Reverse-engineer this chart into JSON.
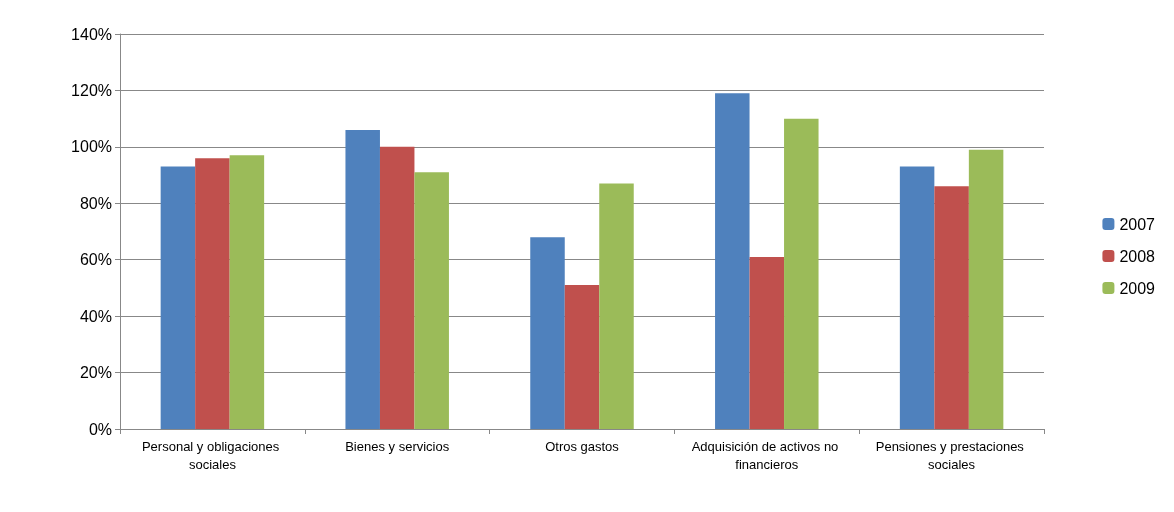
{
  "chart_data": {
    "type": "bar",
    "categories": [
      "Personal y obligaciones sociales",
      "Bienes y servicios",
      "Otros gastos",
      "Adquisición de activos no financieros",
      "Pensiones y prestaciones sociales"
    ],
    "series": [
      {
        "name": "2007",
        "color": "#4f81bd",
        "values": [
          93,
          106,
          68,
          119,
          93
        ]
      },
      {
        "name": "2008",
        "color": "#c0504d",
        "values": [
          96,
          100,
          51,
          61,
          86
        ]
      },
      {
        "name": "2009",
        "color": "#9bbb59",
        "values": [
          97,
          91,
          87,
          110,
          99
        ]
      }
    ],
    "ylim": [
      0,
      140
    ],
    "yticks": [
      {
        "value": 0,
        "label": "0%"
      },
      {
        "value": 20,
        "label": "20%"
      },
      {
        "value": 40,
        "label": "40%"
      },
      {
        "value": 60,
        "label": "60%"
      },
      {
        "value": 80,
        "label": "80%"
      },
      {
        "value": 100,
        "label": "100%"
      },
      {
        "value": 120,
        "label": "120%"
      },
      {
        "value": 140,
        "label": "140%"
      }
    ],
    "grid": "y",
    "legend": "right"
  }
}
